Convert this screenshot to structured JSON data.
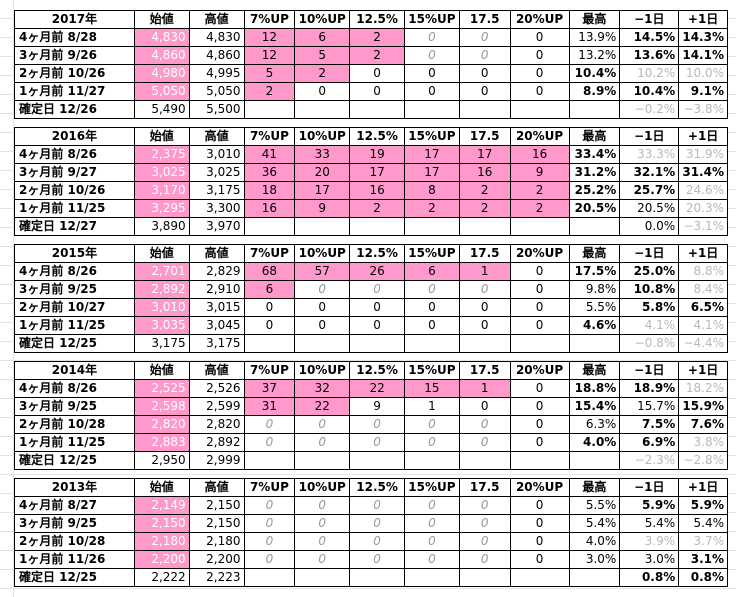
{
  "header_labels": [
    "始値",
    "高値",
    "7%UP",
    "10%UP",
    "12.5%",
    "15%UP",
    "17.5",
    "20%UP",
    "最高",
    "−1日",
    "+1日"
  ],
  "blocks": [
    {
      "year": "2017年",
      "rows": [
        {
          "label": "4ヶ月前  8/28",
          "start": "4,830",
          "high": "4,830",
          "c": [
            "12",
            "6",
            "2",
            "0",
            "0",
            "0"
          ],
          "max": "13.9%",
          "m1": "14.5%",
          "p1": "14.3%"
        },
        {
          "label": "3ヶ月前  9/26",
          "start": "4,860",
          "high": "4,860",
          "c": [
            "12",
            "5",
            "2",
            "0",
            "0",
            "0"
          ],
          "max": "13.2%",
          "m1": "13.6%",
          "p1": "14.1%"
        },
        {
          "label": "2ヶ月前  10/26",
          "start": "4,980",
          "high": "4,995",
          "c": [
            "5",
            "2",
            "0",
            "0",
            "0",
            "0"
          ],
          "max": "10.4%",
          "m1": "10.2%",
          "p1": "10.0%"
        },
        {
          "label": "1ヶ月前  11/27",
          "start": "5,050",
          "high": "5,050",
          "c": [
            "2",
            "0",
            "0",
            "0",
            "0",
            "0"
          ],
          "max": "8.9%",
          "m1": "10.4%",
          "p1": "9.1%"
        },
        {
          "label": "確定日  12/26",
          "start": "5,490",
          "high": "5,500",
          "c": [
            "",
            "",
            "",
            "",
            "",
            ""
          ],
          "max": "",
          "m1": "−0.2%",
          "p1": "−3.8%"
        }
      ]
    },
    {
      "year": "2016年",
      "rows": [
        {
          "label": "4ヶ月前  8/26",
          "start": "2,375",
          "high": "3,010",
          "c": [
            "41",
            "33",
            "19",
            "17",
            "17",
            "16"
          ],
          "max": "33.4%",
          "m1": "33.3%",
          "p1": "31.9%"
        },
        {
          "label": "3ヶ月前  9/27",
          "start": "3,025",
          "high": "3,025",
          "c": [
            "36",
            "20",
            "17",
            "17",
            "16",
            "9"
          ],
          "max": "31.2%",
          "m1": "32.1%",
          "p1": "31.4%"
        },
        {
          "label": "2ヶ月前  10/26",
          "start": "3,170",
          "high": "3,175",
          "c": [
            "18",
            "17",
            "16",
            "8",
            "2",
            "2"
          ],
          "max": "25.2%",
          "m1": "25.7%",
          "p1": "24.6%"
        },
        {
          "label": "1ヶ月前  11/25",
          "start": "3,295",
          "high": "3,300",
          "c": [
            "16",
            "9",
            "2",
            "2",
            "2",
            "2"
          ],
          "max": "20.5%",
          "m1": "20.5%",
          "p1": "20.3%"
        },
        {
          "label": "確定日  12/27",
          "start": "3,890",
          "high": "3,970",
          "c": [
            "",
            "",
            "",
            "",
            "",
            ""
          ],
          "max": "",
          "m1": "0.0%",
          "p1": "−3.1%"
        }
      ]
    },
    {
      "year": "2015年",
      "rows": [
        {
          "label": "4ヶ月前  8/26",
          "start": "2,701",
          "high": "2,829",
          "c": [
            "68",
            "57",
            "26",
            "6",
            "1",
            "0"
          ],
          "max": "17.5%",
          "m1": "25.0%",
          "p1": "8.8%"
        },
        {
          "label": "3ヶ月前  9/25",
          "start": "2,892",
          "high": "2,910",
          "c": [
            "6",
            "0",
            "0",
            "0",
            "0",
            "0"
          ],
          "max": "9.8%",
          "m1": "10.8%",
          "p1": "8.4%"
        },
        {
          "label": "2ヶ月前  10/27",
          "start": "3,010",
          "high": "3,015",
          "c": [
            "0",
            "0",
            "0",
            "0",
            "0",
            "0"
          ],
          "max": "5.5%",
          "m1": "5.8%",
          "p1": "6.5%"
        },
        {
          "label": "1ヶ月前  11/25",
          "start": "3,035",
          "high": "3,045",
          "c": [
            "0",
            "0",
            "0",
            "0",
            "0",
            "0"
          ],
          "max": "4.6%",
          "m1": "4.1%",
          "p1": "4.1%"
        },
        {
          "label": "確定日  12/25",
          "start": "3,175",
          "high": "3,175",
          "c": [
            "",
            "",
            "",
            "",
            "",
            ""
          ],
          "max": "",
          "m1": "−0.8%",
          "p1": "−4.4%"
        }
      ]
    },
    {
      "year": "2014年",
      "rows": [
        {
          "label": "4ヶ月前  8/26",
          "start": "2,525",
          "high": "2,526",
          "c": [
            "37",
            "32",
            "22",
            "15",
            "1",
            "0"
          ],
          "max": "18.8%",
          "m1": "18.9%",
          "p1": "18.2%"
        },
        {
          "label": "3ヶ月前  9/25",
          "start": "2,598",
          "high": "2,599",
          "c": [
            "31",
            "22",
            "9",
            "1",
            "0",
            "0"
          ],
          "max": "15.4%",
          "m1": "15.7%",
          "p1": "15.9%"
        },
        {
          "label": "2ヶ月前  10/28",
          "start": "2,820",
          "high": "2,820",
          "c": [
            "0",
            "0",
            "0",
            "0",
            "0",
            "0"
          ],
          "max": "6.3%",
          "m1": "7.5%",
          "p1": "7.6%"
        },
        {
          "label": "1ヶ月前  11/25",
          "start": "2,883",
          "high": "2,892",
          "c": [
            "0",
            "0",
            "0",
            "0",
            "0",
            "0"
          ],
          "max": "4.0%",
          "m1": "6.9%",
          "p1": "3.8%"
        },
        {
          "label": "確定日  12/25",
          "start": "2,950",
          "high": "2,999",
          "c": [
            "",
            "",
            "",
            "",
            "",
            ""
          ],
          "max": "",
          "m1": "−2.3%",
          "p1": "−2.8%"
        }
      ]
    },
    {
      "year": "2013年",
      "rows": [
        {
          "label": "4ヶ月前  8/27",
          "start": "2,149",
          "high": "2,150",
          "c": [
            "0",
            "0",
            "0",
            "0",
            "0",
            "0"
          ],
          "max": "5.5%",
          "m1": "5.9%",
          "p1": "5.9%"
        },
        {
          "label": "3ヶ月前  9/25",
          "start": "2,150",
          "high": "2,150",
          "c": [
            "0",
            "0",
            "0",
            "0",
            "0",
            "0"
          ],
          "max": "5.4%",
          "m1": "5.4%",
          "p1": "5.4%"
        },
        {
          "label": "2ヶ月前  10/28",
          "start": "2,180",
          "high": "2,180",
          "c": [
            "0",
            "0",
            "0",
            "0",
            "0",
            "0"
          ],
          "max": "4.0%",
          "m1": "3.9%",
          "p1": "3.7%"
        },
        {
          "label": "1ヶ月前  11/26",
          "start": "2,200",
          "high": "2,200",
          "c": [
            "0",
            "0",
            "0",
            "0",
            "0",
            "0"
          ],
          "max": "3.0%",
          "m1": "3.0%",
          "p1": "3.1%"
        },
        {
          "label": "確定日  12/25",
          "start": "2,222",
          "high": "2,223",
          "c": [
            "",
            "",
            "",
            "",
            "",
            ""
          ],
          "max": "",
          "m1": "0.8%",
          "p1": "0.8%"
        }
      ]
    }
  ]
}
